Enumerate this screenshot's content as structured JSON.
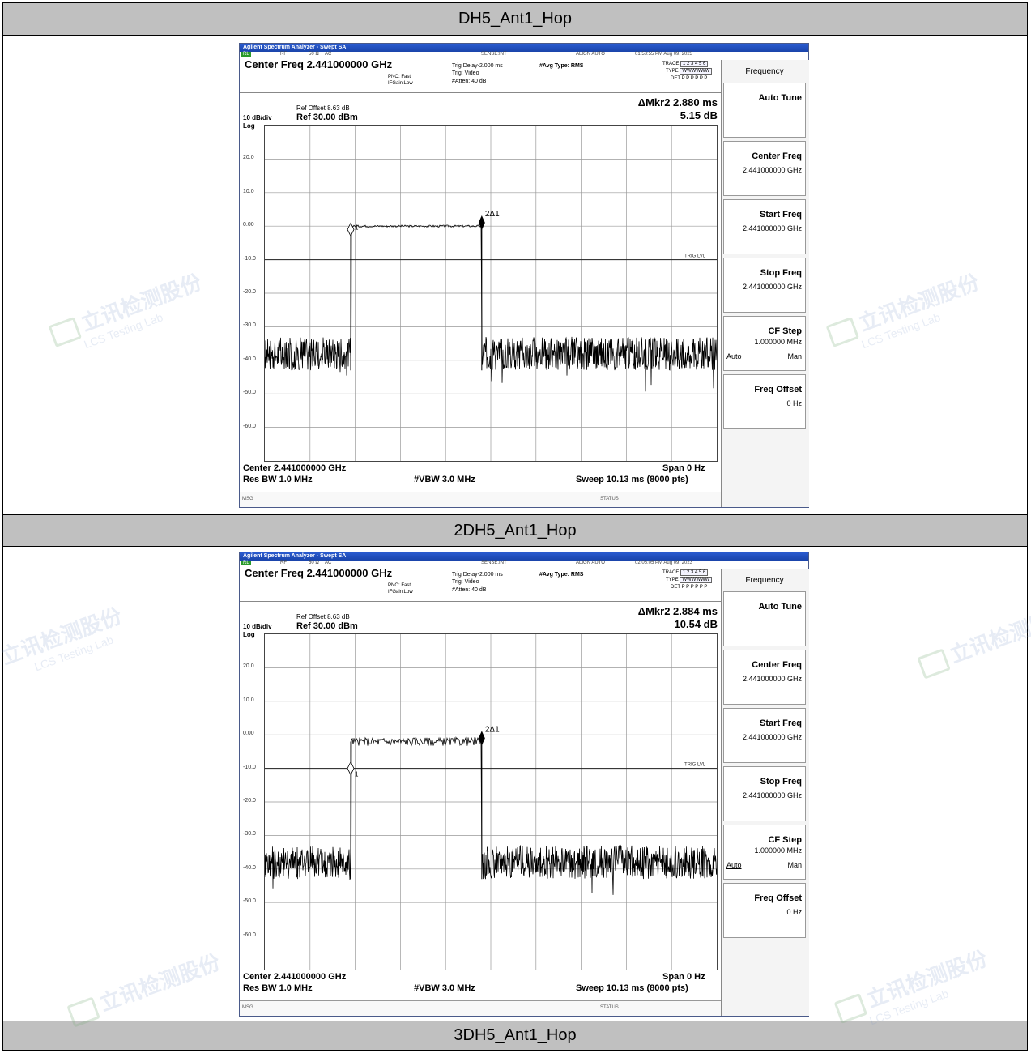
{
  "sections": [
    {
      "title": "DH5_Ant1_Hop",
      "analyzer": {
        "window_title": "Agilent Spectrum Analyzer - Swept SA",
        "status": {
          "rl": "RL",
          "rf": "RF",
          "ohm": "50 Ω",
          "ac": "AC",
          "sense": "SENSE:INT",
          "align": "ALIGN AUTO",
          "datetime": "01:53:55 PM Aug 09, 2023"
        },
        "center_title": "Center Freq 2.441000000 GHz",
        "pno": "PNO: Fast",
        "ifgain": "IFGain:Low",
        "trig_delay": "Trig Delay-2.000 ms",
        "trig": "Trig: Video",
        "atten": "#Atten: 40 dB",
        "avg_type": "#Avg Type: RMS",
        "trace_label": "TRACE",
        "trace_nums": "1 2 3 4 5 6",
        "type_label": "TYPE",
        "type_vals": "WWWWWW",
        "det_label": "DET",
        "det_vals": "P P P P P P",
        "ref_offset": "Ref Offset 8.63 dB",
        "dbdiv": "10 dB/div",
        "ref_level": "Ref 30.00 dBm",
        "log": "Log",
        "mkr_line1": "ΔMkr2 2.880 ms",
        "mkr_line2": "5.15 dB",
        "yticks": [
          "20.0",
          "10.0",
          "0.00",
          "-10.0",
          "-20.0",
          "-30.0",
          "-40.0",
          "-50.0",
          "-60.0"
        ],
        "trig_lvl": "TRIG LVL",
        "marker_label": "2Δ1",
        "marker_ref": "1",
        "center_bottom": "Center 2.441000000 GHz",
        "res_bw": "Res BW 1.0 MHz",
        "vbw": "#VBW 3.0 MHz",
        "span": "Span 0 Hz",
        "sweep": "Sweep  10.13 ms (8000 pts)",
        "msg": "MSG",
        "status_label": "STATUS",
        "chart_data": {
          "type": "line",
          "xlabel": "",
          "ylabel": "",
          "ylim": [
            -70,
            30
          ],
          "yunit": "dBm",
          "pulse_level": 0.0,
          "noise_floor": -38.0,
          "pulse_start_frac": 0.19,
          "pulse_end_frac": 0.48,
          "trig_level": -10.0
        }
      },
      "softkeys": {
        "title": "Frequency",
        "items": [
          {
            "label": "Auto Tune",
            "value": ""
          },
          {
            "label": "Center Freq",
            "value": "2.441000000 GHz"
          },
          {
            "label": "Start Freq",
            "value": "2.441000000 GHz"
          },
          {
            "label": "Stop Freq",
            "value": "2.441000000 GHz"
          },
          {
            "label": "CF Step",
            "value": "1.000000 MHz",
            "auto": "Auto",
            "man": "Man"
          },
          {
            "label": "Freq Offset",
            "value": "0 Hz"
          }
        ]
      }
    },
    {
      "title": "2DH5_Ant1_Hop",
      "analyzer": {
        "window_title": "Agilent Spectrum Analyzer - Swept SA",
        "status": {
          "rl": "RL",
          "rf": "RF",
          "ohm": "50 Ω",
          "ac": "AC",
          "sense": "SENSE:INT",
          "align": "ALIGN AUTO",
          "datetime": "02:06:05 PM Aug 09, 2023"
        },
        "center_title": "Center Freq 2.441000000 GHz",
        "pno": "PNO: Fast",
        "ifgain": "IFGain:Low",
        "trig_delay": "Trig Delay-2.000 ms",
        "trig": "Trig: Video",
        "atten": "#Atten: 40 dB",
        "avg_type": "#Avg Type: RMS",
        "trace_label": "TRACE",
        "trace_nums": "1 2 3 4 5 6",
        "type_label": "TYPE",
        "type_vals": "WWWWWW",
        "det_label": "DET",
        "det_vals": "P P P P P P",
        "ref_offset": "Ref Offset 8.63 dB",
        "dbdiv": "10 dB/div",
        "ref_level": "Ref 30.00 dBm",
        "log": "Log",
        "mkr_line1": "ΔMkr2 2.884 ms",
        "mkr_line2": "10.54 dB",
        "yticks": [
          "20.0",
          "10.0",
          "0.00",
          "-10.0",
          "-20.0",
          "-30.0",
          "-40.0",
          "-50.0",
          "-60.0"
        ],
        "trig_lvl": "TRIG LVL",
        "marker_label": "2Δ1",
        "marker_ref": "1",
        "center_bottom": "Center 2.441000000 GHz",
        "res_bw": "Res BW 1.0 MHz",
        "vbw": "#VBW 3.0 MHz",
        "span": "Span 0 Hz",
        "sweep": "Sweep  10.13 ms (8000 pts)",
        "msg": "MSG",
        "status_label": "STATUS",
        "chart_data": {
          "type": "line",
          "xlabel": "",
          "ylabel": "",
          "ylim": [
            -70,
            30
          ],
          "yunit": "dBm",
          "pulse_level": -2.0,
          "noise_floor": -38.0,
          "pulse_start_frac": 0.19,
          "pulse_end_frac": 0.48,
          "trig_level": -10.0
        }
      },
      "softkeys": {
        "title": "Frequency",
        "items": [
          {
            "label": "Auto Tune",
            "value": ""
          },
          {
            "label": "Center Freq",
            "value": "2.441000000 GHz"
          },
          {
            "label": "Start Freq",
            "value": "2.441000000 GHz"
          },
          {
            "label": "Stop Freq",
            "value": "2.441000000 GHz"
          },
          {
            "label": "CF Step",
            "value": "1.000000 MHz",
            "auto": "Auto",
            "man": "Man"
          },
          {
            "label": "Freq Offset",
            "value": "0 Hz"
          }
        ]
      }
    },
    {
      "title": "3DH5_Ant1_Hop"
    }
  ],
  "watermark": {
    "cn": "立讯检测股份",
    "en": "LCS Testing Lab"
  }
}
